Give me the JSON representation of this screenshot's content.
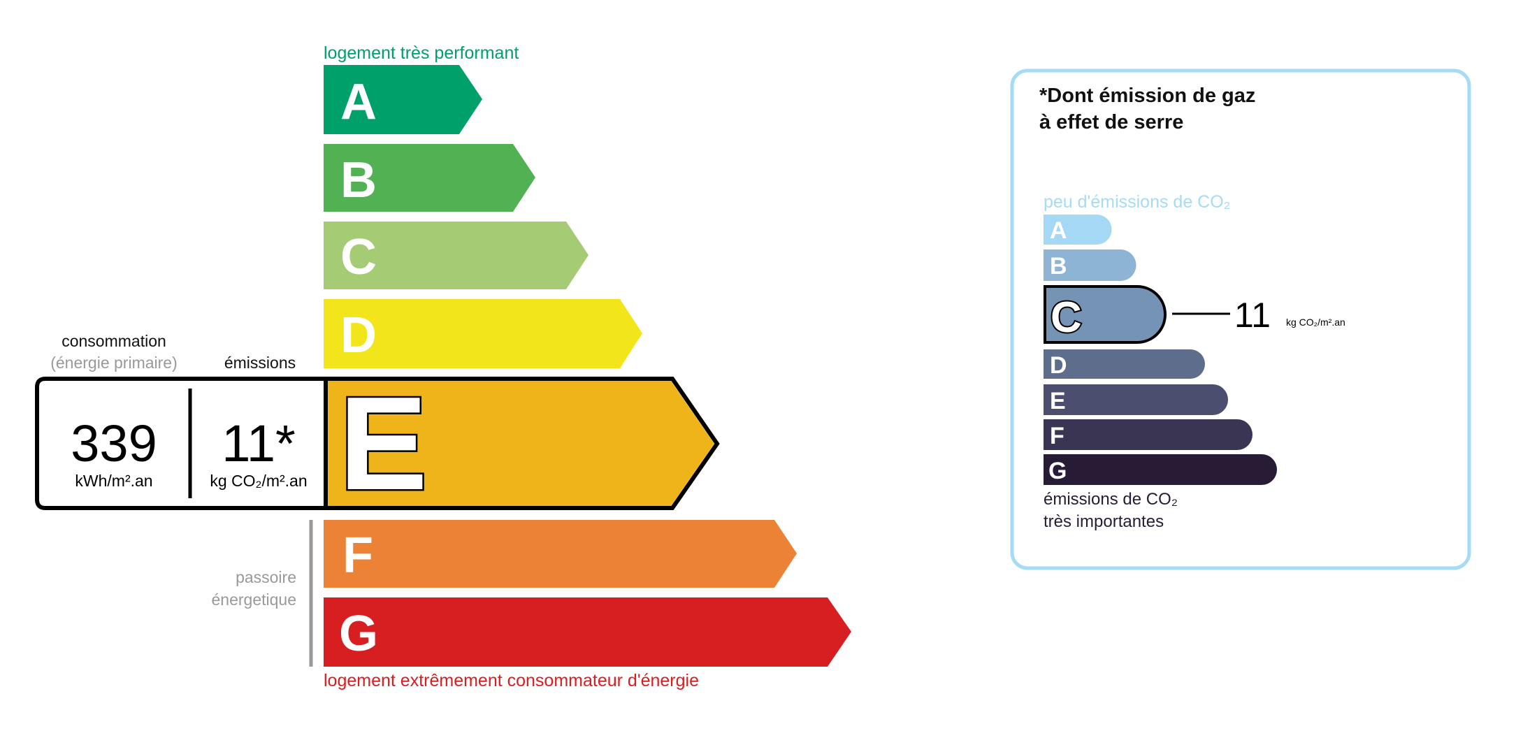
{
  "energy_label": {
    "top_caption": "logement très performant",
    "bottom_caption": "logement extrêmement consommateur d'énergie",
    "consumption_header": "consommation",
    "consumption_subheader": "(énergie primaire)",
    "emissions_header": "émissions",
    "consumption_value": "339",
    "consumption_unit": "kWh/m².an",
    "emissions_value": "11*",
    "emissions_unit": "kg CO₂/m².an",
    "passoire_line1": "passoire",
    "passoire_line2": "énergetique",
    "current_class": "E",
    "classes": [
      {
        "letter": "A",
        "color": "#00a06a"
      },
      {
        "letter": "B",
        "color": "#52b153"
      },
      {
        "letter": "C",
        "color": "#a5cc74"
      },
      {
        "letter": "D",
        "color": "#f2e61b"
      },
      {
        "letter": "E",
        "color": "#efb419"
      },
      {
        "letter": "F",
        "color": "#eb8235"
      },
      {
        "letter": "G",
        "color": "#d71e20"
      }
    ]
  },
  "ghg_label": {
    "title_line1": "*Dont émission de gaz",
    "title_line2": "à effet de serre",
    "top_caption": "peu d'émissions de CO₂",
    "bottom_caption_line1": "émissions de CO₂",
    "bottom_caption_line2": "très importantes",
    "current_class": "C",
    "value": "11",
    "unit": "kg CO₂/m².an",
    "border_color": "#a6dbf5",
    "classes": [
      {
        "letter": "A",
        "color": "#a4d8f4"
      },
      {
        "letter": "B",
        "color": "#8db4d4"
      },
      {
        "letter": "C",
        "color": "#7593b4"
      },
      {
        "letter": "D",
        "color": "#5f6d8d"
      },
      {
        "letter": "E",
        "color": "#4b4e6e"
      },
      {
        "letter": "F",
        "color": "#393552"
      },
      {
        "letter": "G",
        "color": "#281b35"
      }
    ]
  }
}
